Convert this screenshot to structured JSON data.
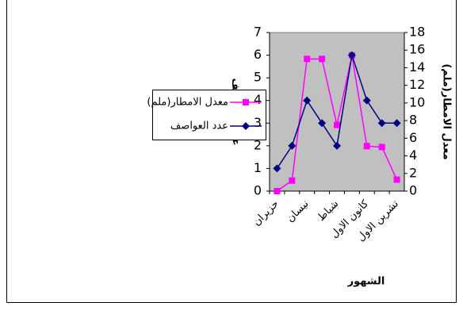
{
  "chart_data": {
    "type": "line",
    "categories": [
      "حزيران",
      null,
      "نيسان",
      null,
      "شباط",
      null,
      "كانون الاول",
      null,
      "تشرين الاول"
    ],
    "series": [
      {
        "name": "معدل الامطار(ملم)",
        "color": "#ff00ff",
        "marker": "square",
        "axis": "y2",
        "values": [
          0,
          1.2,
          15,
          15,
          7.5,
          15.4,
          5.1,
          5,
          1.3
        ]
      },
      {
        "name": "عدد العواصف",
        "color": "#000080",
        "marker": "diamond",
        "values": [
          1,
          2,
          4,
          3,
          2,
          6,
          4,
          3,
          3
        ]
      }
    ],
    "xlabel": "الشهور",
    "ylabel": "عدد العواصف",
    "y2label": "معدل الامطار(ملم)",
    "ylim": [
      0,
      7
    ],
    "yticks": [
      0,
      1,
      2,
      3,
      4,
      5,
      6,
      7
    ],
    "y2lim": [
      0,
      18
    ],
    "y2ticks": [
      0,
      2,
      4,
      6,
      8,
      10,
      12,
      14,
      16,
      18
    ],
    "plot_background": "#c0c0c0",
    "legend": "left"
  }
}
